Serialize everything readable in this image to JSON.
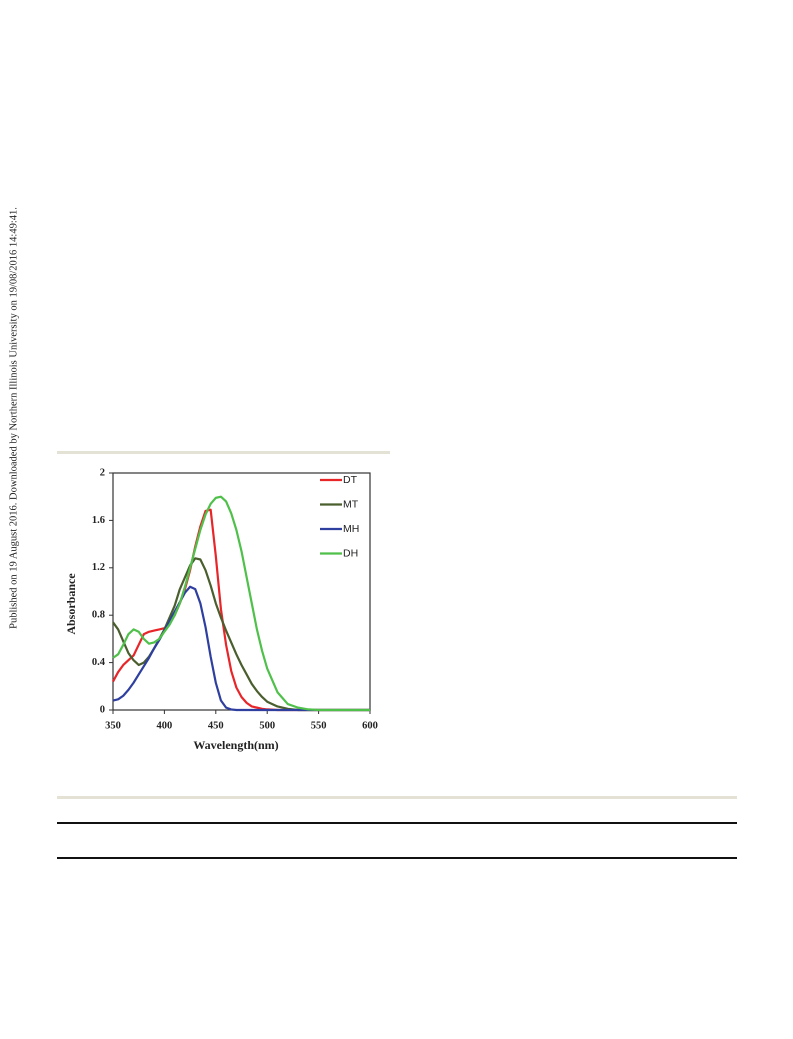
{
  "side_note": "Published on 19 August 2016. Downloaded by Northern Illinois University on 19/08/2016 14:49:41.",
  "chart_data": {
    "type": "line",
    "xlabel": "Wavelength(nm)",
    "ylabel": "Absorbance",
    "x": [
      350,
      355,
      360,
      365,
      370,
      375,
      380,
      385,
      390,
      395,
      400,
      405,
      410,
      415,
      420,
      425,
      430,
      435,
      440,
      445,
      450,
      455,
      460,
      465,
      470,
      475,
      480,
      485,
      490,
      495,
      500,
      510,
      520,
      530,
      540,
      550,
      560,
      570,
      580,
      590,
      600
    ],
    "series": [
      {
        "name": "DT",
        "color": "#e8262a",
        "values": [
          0.24,
          0.32,
          0.38,
          0.42,
          0.46,
          0.55,
          0.64,
          0.66,
          0.67,
          0.68,
          0.69,
          0.73,
          0.8,
          0.9,
          1.02,
          1.18,
          1.38,
          1.55,
          1.68,
          1.69,
          1.3,
          0.85,
          0.55,
          0.33,
          0.19,
          0.11,
          0.06,
          0.03,
          0.02,
          0.01,
          0.005,
          0,
          0,
          0,
          0,
          0,
          0,
          0,
          0,
          0,
          0
        ]
      },
      {
        "name": "MT",
        "color": "#4a5e2e",
        "values": [
          0.74,
          0.68,
          0.58,
          0.48,
          0.42,
          0.38,
          0.4,
          0.45,
          0.52,
          0.6,
          0.68,
          0.78,
          0.88,
          1.02,
          1.12,
          1.22,
          1.28,
          1.27,
          1.18,
          1.05,
          0.9,
          0.78,
          0.67,
          0.57,
          0.47,
          0.38,
          0.3,
          0.22,
          0.16,
          0.11,
          0.07,
          0.03,
          0.01,
          0,
          0,
          0,
          0,
          0,
          0,
          0,
          0
        ]
      },
      {
        "name": "MH",
        "color": "#2e3fa0",
        "values": [
          0.08,
          0.09,
          0.12,
          0.17,
          0.23,
          0.3,
          0.37,
          0.44,
          0.52,
          0.59,
          0.67,
          0.75,
          0.83,
          0.91,
          0.99,
          1.04,
          1.02,
          0.9,
          0.7,
          0.45,
          0.23,
          0.08,
          0.02,
          0.005,
          0,
          0,
          0,
          0,
          0,
          0,
          0,
          0,
          0,
          0,
          0,
          0,
          0,
          0,
          0,
          0,
          0
        ]
      },
      {
        "name": "DH",
        "color": "#4fc04a",
        "values": [
          0.44,
          0.47,
          0.55,
          0.64,
          0.68,
          0.66,
          0.6,
          0.56,
          0.57,
          0.6,
          0.66,
          0.72,
          0.8,
          0.9,
          1.04,
          1.2,
          1.36,
          1.52,
          1.65,
          1.74,
          1.79,
          1.8,
          1.76,
          1.66,
          1.52,
          1.34,
          1.12,
          0.9,
          0.68,
          0.5,
          0.35,
          0.15,
          0.05,
          0.02,
          0.005,
          0,
          0,
          0,
          0,
          0,
          0
        ]
      }
    ],
    "xlim": [
      350,
      600
    ],
    "xticks": [
      350,
      400,
      450,
      500,
      550,
      600
    ],
    "ylim": [
      0,
      2
    ],
    "yticks": [
      0,
      0.4,
      0.8,
      1.2,
      1.6,
      2
    ],
    "legend": "upper right"
  }
}
